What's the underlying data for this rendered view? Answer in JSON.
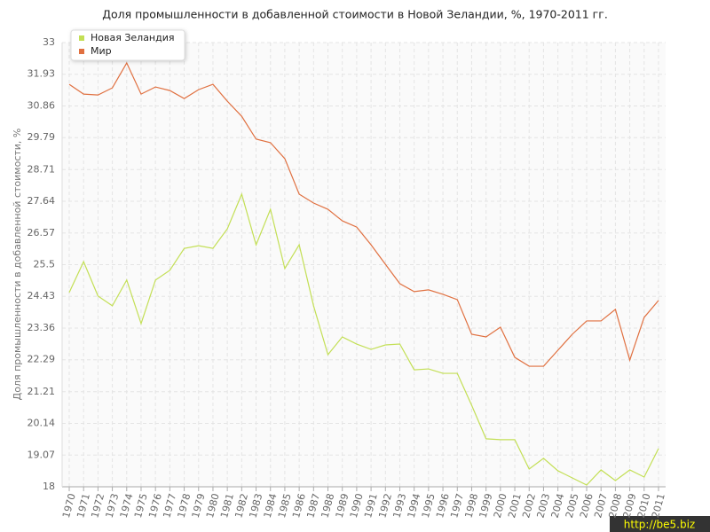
{
  "chart_data": {
    "type": "line",
    "title": "Доля промышленности в добавленной стоимости в Новой Зеландии, %, 1970-2011 гг.",
    "y_label": "Доля промышленности в добавленной стоимости, %",
    "categories": [
      "1970",
      "1971",
      "1972",
      "1973",
      "1974",
      "1975",
      "1976",
      "1977",
      "1978",
      "1979",
      "1980",
      "1981",
      "1982",
      "1983",
      "1984",
      "1985",
      "1986",
      "1987",
      "1988",
      "1989",
      "1990",
      "1991",
      "1992",
      "1993",
      "1994",
      "1995",
      "1996",
      "1997",
      "1998",
      "1999",
      "2000",
      "2001",
      "2002",
      "2003",
      "2004",
      "2005",
      "2006",
      "2007",
      "2008",
      "2009",
      "2010",
      "2011"
    ],
    "series": [
      {
        "name": "Новая Зеландия",
        "color": "#c3df55",
        "values": [
          24.56,
          25.6,
          24.44,
          24.11,
          24.98,
          23.51,
          24.98,
          25.31,
          26.05,
          26.14,
          26.05,
          26.71,
          27.88,
          26.17,
          27.37,
          25.37,
          26.17,
          24.11,
          22.46,
          23.06,
          22.82,
          22.64,
          22.79,
          22.82,
          21.95,
          21.98,
          21.83,
          21.83,
          20.75,
          19.62,
          19.59,
          19.59,
          18.6,
          18.96,
          18.54,
          18.3,
          18.06,
          18.57,
          18.21,
          18.57,
          18.33,
          19.29
        ]
      },
      {
        "name": "Мир",
        "color": "#e07040",
        "values": [
          31.59,
          31.26,
          31.23,
          31.47,
          32.31,
          31.26,
          31.5,
          31.38,
          31.11,
          31.41,
          31.59,
          31.02,
          30.51,
          29.74,
          29.62,
          29.08,
          27.88,
          27.58,
          27.37,
          26.98,
          26.77,
          26.17,
          25.51,
          24.86,
          24.59,
          24.65,
          24.5,
          24.32,
          23.15,
          23.06,
          23.39,
          22.37,
          22.07,
          22.07,
          22.61,
          23.15,
          23.6,
          23.6,
          23.99,
          22.28,
          23.72,
          24.29
        ]
      }
    ],
    "ylim": [
      18,
      33
    ],
    "yticks": [
      18,
      19.07,
      20.14,
      21.21,
      22.29,
      23.36,
      24.43,
      25.5,
      26.57,
      27.64,
      28.71,
      29.79,
      30.86,
      31.93,
      33
    ],
    "grid": true,
    "legend": "top-left",
    "watermark": "http://be5.biz"
  }
}
